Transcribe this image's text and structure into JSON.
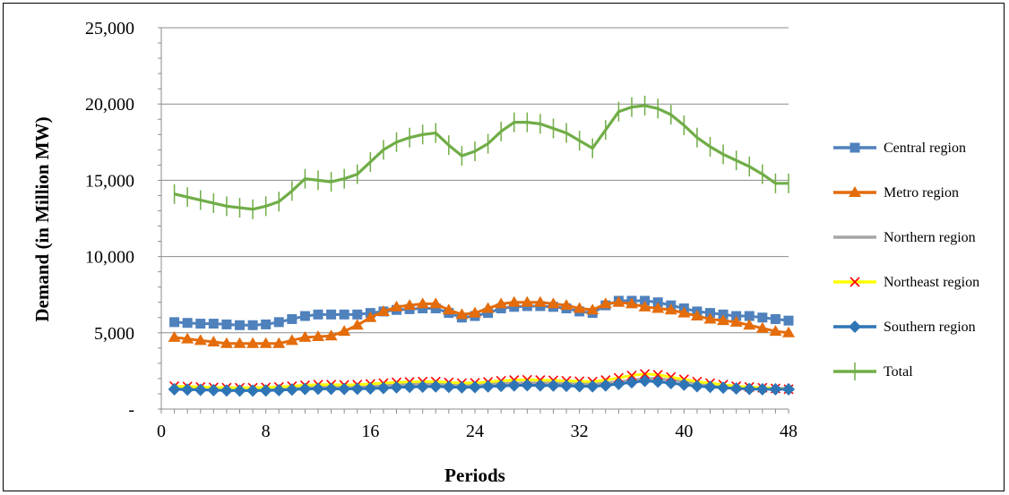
{
  "chart_data": {
    "type": "line",
    "xlabel": "Periods",
    "ylabel": "Demand  (in Million MW)",
    "xlim": [
      0,
      48
    ],
    "ylim": [
      0,
      25000
    ],
    "xticks": [
      0,
      8,
      16,
      24,
      32,
      40,
      48
    ],
    "yticks": [
      0,
      5000,
      10000,
      15000,
      20000,
      25000
    ],
    "ytick_labels": [
      "-",
      "5,000",
      "10,000",
      "15,000",
      "20,000",
      "25,000"
    ],
    "grid": "horizontal",
    "legend_position": "right",
    "x": [
      1,
      2,
      3,
      4,
      5,
      6,
      7,
      8,
      9,
      10,
      11,
      12,
      13,
      14,
      15,
      16,
      17,
      18,
      19,
      20,
      21,
      22,
      23,
      24,
      25,
      26,
      27,
      28,
      29,
      30,
      31,
      32,
      33,
      34,
      35,
      36,
      37,
      38,
      39,
      40,
      41,
      42,
      43,
      44,
      45,
      46,
      47,
      48
    ],
    "series": [
      {
        "name": "Central region",
        "color": "#4f81bd",
        "marker": "square",
        "values": [
          5700,
          5650,
          5600,
          5600,
          5550,
          5500,
          5500,
          5550,
          5700,
          5900,
          6100,
          6200,
          6200,
          6200,
          6200,
          6300,
          6400,
          6500,
          6550,
          6600,
          6600,
          6300,
          6000,
          6100,
          6300,
          6600,
          6700,
          6750,
          6750,
          6700,
          6600,
          6400,
          6300,
          6800,
          7100,
          7100,
          7100,
          7000,
          6800,
          6600,
          6400,
          6300,
          6200,
          6100,
          6100,
          6000,
          5900,
          5800
        ]
      },
      {
        "name": "Metro region",
        "color": "#e46c0a",
        "marker": "triangle",
        "values": [
          4700,
          4600,
          4500,
          4400,
          4300,
          4300,
          4300,
          4300,
          4300,
          4500,
          4700,
          4750,
          4800,
          5100,
          5500,
          6000,
          6400,
          6700,
          6800,
          6900,
          6900,
          6500,
          6200,
          6300,
          6600,
          6900,
          7000,
          7000,
          7000,
          6900,
          6800,
          6600,
          6500,
          6900,
          7000,
          6900,
          6700,
          6600,
          6500,
          6300,
          6100,
          5900,
          5800,
          5700,
          5500,
          5300,
          5100,
          5000
        ]
      },
      {
        "name": "Northern region",
        "color": "#a5a5a5",
        "marker": "none",
        "values": [
          1400,
          1380,
          1360,
          1340,
          1320,
          1310,
          1310,
          1320,
          1350,
          1400,
          1450,
          1470,
          1470,
          1470,
          1480,
          1500,
          1550,
          1600,
          1620,
          1640,
          1650,
          1600,
          1550,
          1580,
          1620,
          1680,
          1700,
          1720,
          1720,
          1700,
          1680,
          1650,
          1640,
          1700,
          1800,
          1900,
          2000,
          2000,
          1900,
          1800,
          1700,
          1600,
          1500,
          1450,
          1420,
          1400,
          1380,
          1350
        ]
      },
      {
        "name": "Northeast region",
        "color": "#ff0000",
        "marker": "x",
        "values": [
          1500,
          1480,
          1450,
          1420,
          1400,
          1400,
          1400,
          1420,
          1450,
          1500,
          1560,
          1600,
          1600,
          1580,
          1600,
          1650,
          1700,
          1750,
          1780,
          1800,
          1800,
          1750,
          1700,
          1720,
          1780,
          1850,
          1900,
          1920,
          1900,
          1880,
          1850,
          1820,
          1800,
          1900,
          2050,
          2200,
          2300,
          2250,
          2100,
          1950,
          1800,
          1700,
          1600,
          1500,
          1450,
          1400,
          1350,
          1300
        ]
      },
      {
        "name": "Southern region",
        "color": "#2e75b6",
        "marker": "diamond",
        "values": [
          1300,
          1280,
          1260,
          1240,
          1220,
          1210,
          1210,
          1220,
          1240,
          1280,
          1320,
          1330,
          1330,
          1320,
          1330,
          1350,
          1380,
          1420,
          1450,
          1470,
          1480,
          1450,
          1420,
          1440,
          1480,
          1520,
          1550,
          1560,
          1550,
          1540,
          1520,
          1500,
          1490,
          1550,
          1650,
          1750,
          1850,
          1800,
          1700,
          1600,
          1500,
          1450,
          1400,
          1350,
          1320,
          1300,
          1300,
          1300
        ]
      },
      {
        "name": "Total",
        "color": "#70ad47",
        "marker": "plus",
        "values": [
          14100,
          13900,
          13700,
          13500,
          13300,
          13200,
          13100,
          13300,
          13600,
          14300,
          15100,
          15000,
          14900,
          15100,
          15400,
          16200,
          17000,
          17500,
          17800,
          18000,
          18100,
          17300,
          16600,
          16900,
          17400,
          18200,
          18800,
          18800,
          18700,
          18400,
          18100,
          17600,
          17100,
          18300,
          19500,
          19800,
          19900,
          19700,
          19300,
          18600,
          17800,
          17200,
          16700,
          16300,
          15900,
          15400,
          14800,
          14800
        ]
      }
    ]
  }
}
